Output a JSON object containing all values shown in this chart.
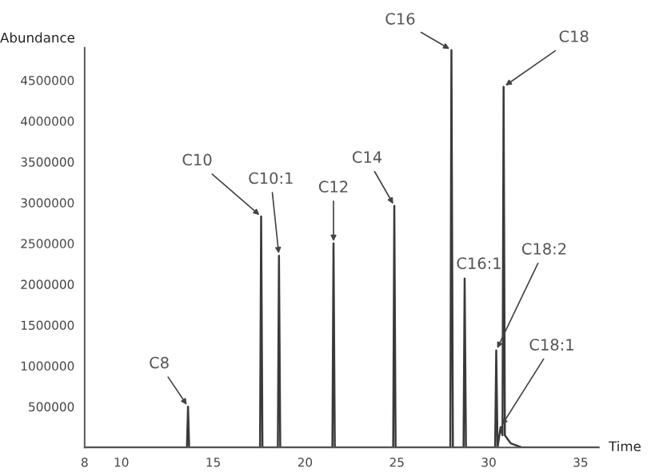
{
  "chart_data": {
    "type": "line",
    "xlabel": "Time",
    "ylabel": "Abundance",
    "x": [
      8,
      13.57,
      13.63,
      13.69,
      17.55,
      17.61,
      17.68,
      18.52,
      18.58,
      18.65,
      21.49,
      21.55,
      21.62,
      24.8,
      24.86,
      24.93,
      27.91,
      27.97,
      28.05,
      28.63,
      28.69,
      28.76,
      30.35,
      30.41,
      30.48,
      30.65,
      30.75,
      30.81,
      30.88,
      31.2,
      31.8,
      36
    ],
    "series": [
      {
        "color": "#3a3a3a",
        "values": [
          0,
          0,
          500000,
          0,
          0,
          2830000,
          0,
          0,
          2350000,
          0,
          0,
          2500000,
          0,
          0,
          2960000,
          0,
          0,
          4870000,
          0,
          0,
          2070000,
          0,
          0,
          1190000,
          0,
          250000,
          150000,
          4420000,
          150000,
          50000,
          0,
          0
        ]
      }
    ],
    "xlim": [
      8,
      36
    ],
    "ylim": [
      0,
      4900000
    ],
    "xticks": [
      8,
      10,
      15,
      20,
      25,
      30,
      35
    ],
    "yticks": [
      500000,
      1000000,
      1500000,
      2000000,
      2500000,
      3000000,
      3500000,
      4000000,
      4500000
    ],
    "marker": "none",
    "line_style": "solid",
    "grid": false,
    "legend": false,
    "annotations": [
      {
        "text": "C8",
        "x": 13.63,
        "y": 500000
      },
      {
        "text": "C10",
        "x": 17.61,
        "y": 2830000
      },
      {
        "text": "C10:1",
        "x": 18.58,
        "y": 2350000
      },
      {
        "text": "C12",
        "x": 21.55,
        "y": 2500000
      },
      {
        "text": "C14",
        "x": 24.86,
        "y": 2960000
      },
      {
        "text": "C16",
        "x": 27.97,
        "y": 4870000
      },
      {
        "text": "C18",
        "x": 30.81,
        "y": 4420000
      },
      {
        "text": "C16:1",
        "x": 28.69,
        "y": 2070000
      },
      {
        "text": "C18:2",
        "x": 30.41,
        "y": 1190000
      },
      {
        "text": "C18:1",
        "x": 30.65,
        "y": 250000
      }
    ]
  }
}
